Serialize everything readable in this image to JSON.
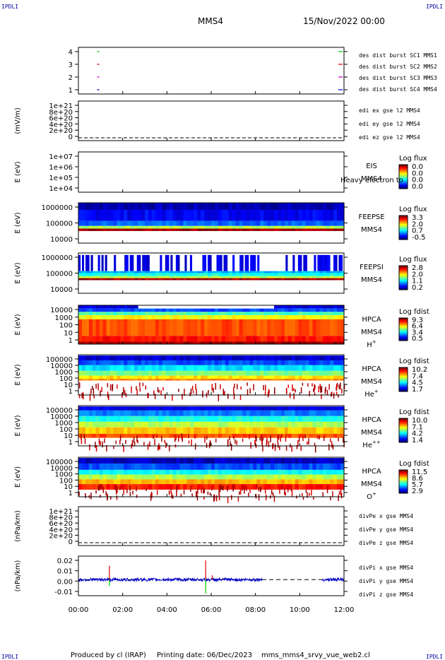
{
  "header": {
    "corner_label": "IPDLI",
    "spacecraft": "MMS4",
    "datetime": "15/Nov/2022 00:00"
  },
  "footer": {
    "produced_by": "Produced by cl (IRAP)",
    "printing_date": "Printing date: 06/Dec/2023",
    "script_name": "mms_mms4_srvy_vue_web2.cl"
  },
  "time_axis": {
    "range_hours": [
      0,
      12
    ],
    "ticks": [
      "00:00",
      "02:00",
      "04:00",
      "06:00",
      "08:00",
      "10:00",
      "12:00"
    ]
  },
  "colors": {
    "red": "#dd0000",
    "green": "#00cc00",
    "magenta": "#cc00cc",
    "blue": "#0000cc"
  },
  "chart_data": [
    {
      "type": "line",
      "title": "burst coverage",
      "yticks": [
        "4",
        "3",
        "2",
        "1"
      ],
      "series": [
        {
          "name": "des dist burst SC1 MMS1",
          "color": "#00cc00",
          "y": 4,
          "intervals_hours": [
            [
              0.5,
              1.1
            ],
            [
              11.5,
              12.0
            ]
          ]
        },
        {
          "name": "des dist burst SC2 MMS2",
          "color": "#dd0000",
          "y": 3,
          "intervals_hours": [
            [
              0.5,
              1.1
            ],
            [
              11.5,
              12.0
            ]
          ]
        },
        {
          "name": "des dist burst SC3 MMS3",
          "color": "#cc00cc",
          "y": 2,
          "intervals_hours": [
            [
              0.5,
              1.1
            ],
            [
              11.5,
              12.0
            ]
          ]
        },
        {
          "name": "des dist burst SC4 MMS4",
          "color": "#0000cc",
          "y": 1,
          "intervals_hours": [
            [
              0.5,
              1.1
            ],
            [
              11.5,
              12.0
            ]
          ]
        }
      ]
    },
    {
      "type": "line",
      "ylabel": "(mV/m)",
      "yticks": [
        "1e+21",
        "8e+20",
        "6e+20",
        "4e+20",
        "2e+20",
        "0"
      ],
      "series": [
        {
          "name": "edi ex gse l2 MMS4",
          "color": "#dd0000",
          "values": []
        },
        {
          "name": "edi ey gse l2 MMS4",
          "color": "#00cc00",
          "values": []
        },
        {
          "name": "edi ez gse l2 MMS4",
          "color": "#0000cc",
          "values": []
        }
      ]
    },
    {
      "type": "heatmap",
      "ylabel": "E (eV)",
      "yticks": [
        "1e+07",
        "1e+06",
        "1e+05",
        "1e+04"
      ],
      "instrument": [
        "EIS",
        "MMS4"
      ],
      "overlay_text": "Heavy electron to",
      "colorbar": {
        "label": "Log flux",
        "ticks": [
          "0.0",
          "0.0",
          "0.0",
          "0.0"
        ]
      },
      "empty": true
    },
    {
      "type": "heatmap",
      "ylabel": "E (eV)",
      "yticks": [
        "1000000",
        "100000",
        "10000"
      ],
      "instrument": [
        "FEEPSE",
        "MMS4"
      ],
      "colorbar": {
        "label": "Log flux",
        "ticks": [
          "3.3",
          "2.0",
          "0.7",
          "-0.5"
        ]
      },
      "bands_log_eV": [
        {
          "from": 5.65,
          "to": 6.0,
          "level": 0.05
        },
        {
          "from": 5.1,
          "to": 5.65,
          "level": 0.12
        },
        {
          "from": 4.85,
          "to": 5.1,
          "level": 0.22
        },
        {
          "from": 4.72,
          "to": 4.85,
          "level": 0.55
        },
        {
          "from": 4.6,
          "to": 4.72,
          "level": 0.97
        }
      ]
    },
    {
      "type": "heatmap",
      "ylabel": "E (eV)",
      "yticks": [
        "1000000",
        "100000",
        "10000"
      ],
      "instrument": [
        "FEEPSI",
        "MMS4"
      ],
      "colorbar": {
        "label": "Log flux",
        "ticks": [
          "2.8",
          "2.0",
          "1.1",
          "0.2"
        ]
      },
      "bands_log_eV": [
        {
          "from": 5.1,
          "to": 5.9,
          "level": 0.1,
          "speckled": true
        },
        {
          "from": 5.0,
          "to": 5.1,
          "level": 0.3
        },
        {
          "from": 4.85,
          "to": 5.0,
          "level": 0.4
        },
        {
          "from": 4.75,
          "to": 4.85,
          "level": 0.55
        },
        {
          "from": 4.65,
          "to": 4.75,
          "level": 0.97
        }
      ]
    },
    {
      "type": "heatmap",
      "ylabel": "E (eV)",
      "yticks": [
        "10000",
        "1000",
        "100",
        "10",
        "1"
      ],
      "instrument": [
        "HPCA",
        "MMS4",
        "H+"
      ],
      "colorbar": {
        "label": "Log fdist",
        "ticks": [
          "9.3",
          "6.4",
          "3.4",
          "0.5"
        ]
      },
      "bands_log_eV": [
        {
          "from": 4.3,
          "to": 4.7,
          "level": 0.1
        },
        {
          "from": 3.9,
          "to": 4.3,
          "level": 0.2
        },
        {
          "from": 3.5,
          "to": 3.9,
          "level": 0.45
        },
        {
          "from": 3.0,
          "to": 3.5,
          "level": 0.62
        },
        {
          "from": 1.0,
          "to": 3.0,
          "level": 0.8
        },
        {
          "from": 0.3,
          "to": 1.0,
          "level": 0.86
        },
        {
          "from": 0.0,
          "to": 0.3,
          "level": 0.97
        }
      ]
    },
    {
      "type": "heatmap",
      "ylabel": "E (eV)",
      "yticks": [
        "100000",
        "10000",
        "1000",
        "100",
        "10",
        "1"
      ],
      "instrument": [
        "HPCA",
        "MMS4",
        "He+"
      ],
      "colorbar": {
        "label": "Log fdist",
        "ticks": [
          "10.2",
          "7.4",
          "4.5",
          "1.7"
        ]
      },
      "bands_log_eV": [
        {
          "from": 4.3,
          "to": 4.9,
          "level": 0.08
        },
        {
          "from": 3.7,
          "to": 4.3,
          "level": 0.2
        },
        {
          "from": 3.0,
          "to": 3.7,
          "level": 0.35
        },
        {
          "from": 2.4,
          "to": 3.0,
          "level": 0.5
        },
        {
          "from": 2.0,
          "to": 2.4,
          "level": 0.65
        },
        {
          "from": 1.8,
          "to": 2.0,
          "level": 0.75
        }
      ]
    },
    {
      "type": "heatmap",
      "ylabel": "E (eV)",
      "yticks": [
        "100000",
        "10000",
        "1000",
        "100",
        "10",
        "1"
      ],
      "instrument": [
        "HPCA",
        "MMS4",
        "He++"
      ],
      "colorbar": {
        "label": "Log fdist",
        "ticks": [
          "10.0",
          "7.1",
          "4.2",
          "1.4"
        ]
      },
      "bands_log_eV": [
        {
          "from": 4.4,
          "to": 4.9,
          "level": 0.1
        },
        {
          "from": 3.7,
          "to": 4.4,
          "level": 0.25
        },
        {
          "from": 3.0,
          "to": 3.7,
          "level": 0.4
        },
        {
          "from": 2.3,
          "to": 3.0,
          "level": 0.55
        },
        {
          "from": 1.5,
          "to": 2.3,
          "level": 0.68
        },
        {
          "from": 1.0,
          "to": 1.5,
          "level": 0.8
        }
      ]
    },
    {
      "type": "heatmap",
      "ylabel": "E (eV)",
      "yticks": [
        "100000",
        "10000",
        "1000",
        "100",
        "10",
        "1"
      ],
      "instrument": [
        "HPCA",
        "MMS4",
        "O+"
      ],
      "colorbar": {
        "label": "Log fdist",
        "ticks": [
          "11.5",
          "8.6",
          "5.7",
          "2.9"
        ]
      },
      "bands_log_eV": [
        {
          "from": 4.2,
          "to": 4.9,
          "level": 0.06
        },
        {
          "from": 3.4,
          "to": 4.2,
          "level": 0.2
        },
        {
          "from": 2.8,
          "to": 3.4,
          "level": 0.38
        },
        {
          "from": 2.2,
          "to": 2.8,
          "level": 0.55
        },
        {
          "from": 1.6,
          "to": 2.2,
          "level": 0.7
        },
        {
          "from": 0.9,
          "to": 1.6,
          "level": 0.85
        }
      ]
    },
    {
      "type": "line",
      "ylabel": "(nPa/km)",
      "yticks": [
        "1e+21",
        "8e+20",
        "6e+20",
        "4e+20",
        "2e+20",
        "0"
      ],
      "series": [
        {
          "name": "divPe x gse MMS4",
          "color": "#dd0000",
          "values": []
        },
        {
          "name": "divPe y gse MMS4",
          "color": "#00cc00",
          "values": []
        },
        {
          "name": "divPe z gse MMS4",
          "color": "#0000cc",
          "values": []
        }
      ]
    },
    {
      "type": "line",
      "ylabel": "(nPa/km)",
      "yticks": [
        "0.02",
        "0.01",
        "0.00",
        "-0.01"
      ],
      "ylim": [
        -0.015,
        0.022
      ],
      "series": [
        {
          "name": "divPi x gse MMS4",
          "color": "#dd0000",
          "spikes": [
            {
              "t": 1.4,
              "v": 0.013
            },
            {
              "t": 5.75,
              "v": 0.018
            },
            {
              "t": 6.05,
              "v": 0.004
            }
          ]
        },
        {
          "name": "divPi y gse MMS4",
          "color": "#00cc00",
          "spikes": [
            {
              "t": 1.4,
              "v": -0.006
            },
            {
              "t": 5.75,
              "v": -0.013
            }
          ]
        },
        {
          "name": "divPi z gse MMS4",
          "color": "#0000cc",
          "segments_hours": [
            [
              0.0,
              8.3
            ],
            [
              11.0,
              12.0
            ]
          ],
          "noise": 0.0015
        }
      ]
    }
  ]
}
